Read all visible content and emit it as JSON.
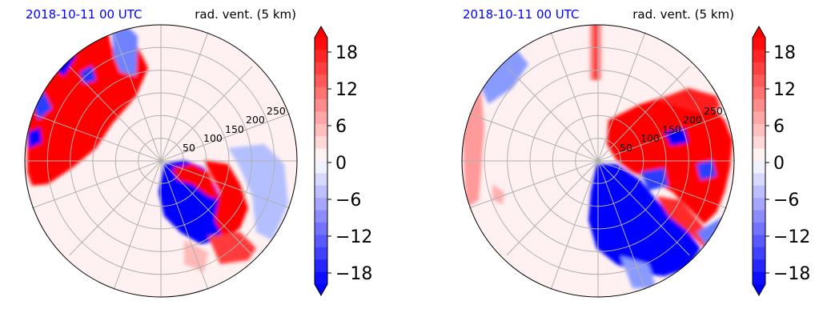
{
  "figure": {
    "panels": [
      {
        "date": "2018-10-11 00 UTC",
        "title": "rad. vent. (5 km)"
      },
      {
        "date": "2018-10-11 00 UTC",
        "title": "rad. vent. (5 km)"
      }
    ]
  },
  "colors": {
    "date_text": "#0000ff",
    "strong_positive": "#ff0000",
    "strong_negative": "#0000ff",
    "grid": "#b0b0b0"
  },
  "chart_data": [
    {
      "type": "heatmap",
      "projection": "polar",
      "title": "rad. vent. (5 km)",
      "date": "2018-10-11 00 UTC",
      "radial_ticks": [
        "50",
        "100",
        "150",
        "200",
        "250"
      ],
      "radial_values": [
        50,
        100,
        150,
        200,
        250
      ],
      "rmax": 300,
      "colorbar": {
        "ticks": [
          "18",
          "12",
          "6",
          "0",
          "−6",
          "−12",
          "−18"
        ],
        "tick_values": [
          18,
          12,
          6,
          0,
          -6,
          -12,
          -18
        ],
        "vmin": -20,
        "vmax": 20,
        "levels": 20,
        "extend": "both"
      },
      "features": [
        {
          "sign": "positive",
          "region": "north-west band",
          "az_from": 290,
          "az_to": 355,
          "r_from": 0.3,
          "r_to": 1.0
        },
        {
          "sign": "positive",
          "region": "south-east",
          "az_from": 100,
          "az_to": 165,
          "r_from": 0.25,
          "r_to": 0.75
        },
        {
          "sign": "negative",
          "region": "south",
          "az_from": 150,
          "az_to": 200,
          "r_from": 0.1,
          "r_to": 0.65
        }
      ]
    },
    {
      "type": "heatmap",
      "projection": "polar",
      "title": "rad. vent. (5 km)",
      "date": "2018-10-11 00 UTC",
      "radial_ticks": [
        "50",
        "100",
        "150",
        "200",
        "250"
      ],
      "radial_values": [
        50,
        100,
        150,
        200,
        250
      ],
      "rmax": 300,
      "colorbar": {
        "ticks": [
          "18",
          "12",
          "6",
          "0",
          "−6",
          "−12",
          "−18"
        ],
        "tick_values": [
          18,
          12,
          6,
          0,
          -6,
          -12,
          -18
        ],
        "vmin": -20,
        "vmax": 20,
        "levels": 20,
        "extend": "both"
      },
      "features": [
        {
          "sign": "positive",
          "region": "north-east",
          "az_from": 30,
          "az_to": 95,
          "r_from": 0.25,
          "r_to": 0.95
        },
        {
          "sign": "negative",
          "region": "south",
          "az_from": 150,
          "az_to": 205,
          "r_from": 0.15,
          "r_to": 0.85
        },
        {
          "sign": "negative",
          "region": "north-west",
          "az_from": 305,
          "az_to": 340,
          "r_from": 0.8,
          "r_to": 1.0
        }
      ]
    }
  ]
}
